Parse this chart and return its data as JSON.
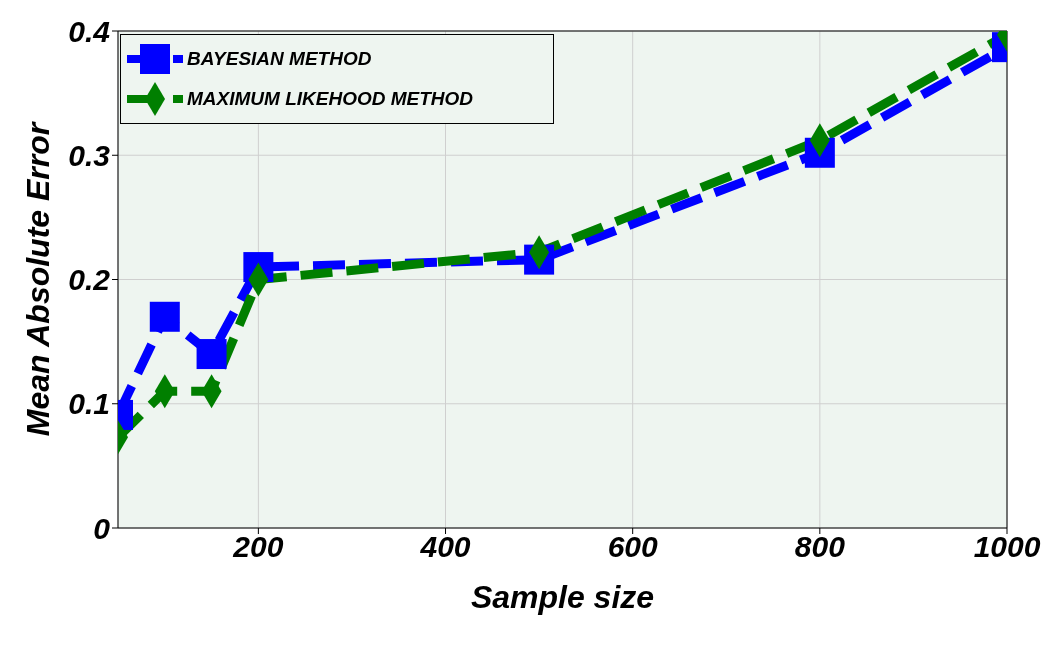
{
  "chart_data": {
    "type": "line",
    "xlabel": "Sample size",
    "ylabel": "Mean Absolute Error",
    "x": [
      50,
      100,
      150,
      200,
      500,
      800,
      1000
    ],
    "series": [
      {
        "name": "BAYESIAN METHOD",
        "color": "#0000ff",
        "marker": "square",
        "values": [
          0.091,
          0.17,
          0.14,
          0.21,
          0.216,
          0.302,
          0.387
        ]
      },
      {
        "name": "MAXIMUM LIKEHOOD METHOD",
        "color": "#007f00",
        "marker": "diamond",
        "values": [
          0.073,
          0.11,
          0.11,
          0.2,
          0.222,
          0.312,
          0.397
        ]
      }
    ],
    "xlim": [
      50,
      1000
    ],
    "xticks": [
      200,
      400,
      600,
      800,
      1000
    ],
    "ylim": [
      0,
      0.4
    ],
    "yticks": [
      0,
      0.1,
      0.2,
      0.3,
      0.4
    ],
    "grid": true,
    "legend": "top left",
    "line_style": "dashed"
  }
}
